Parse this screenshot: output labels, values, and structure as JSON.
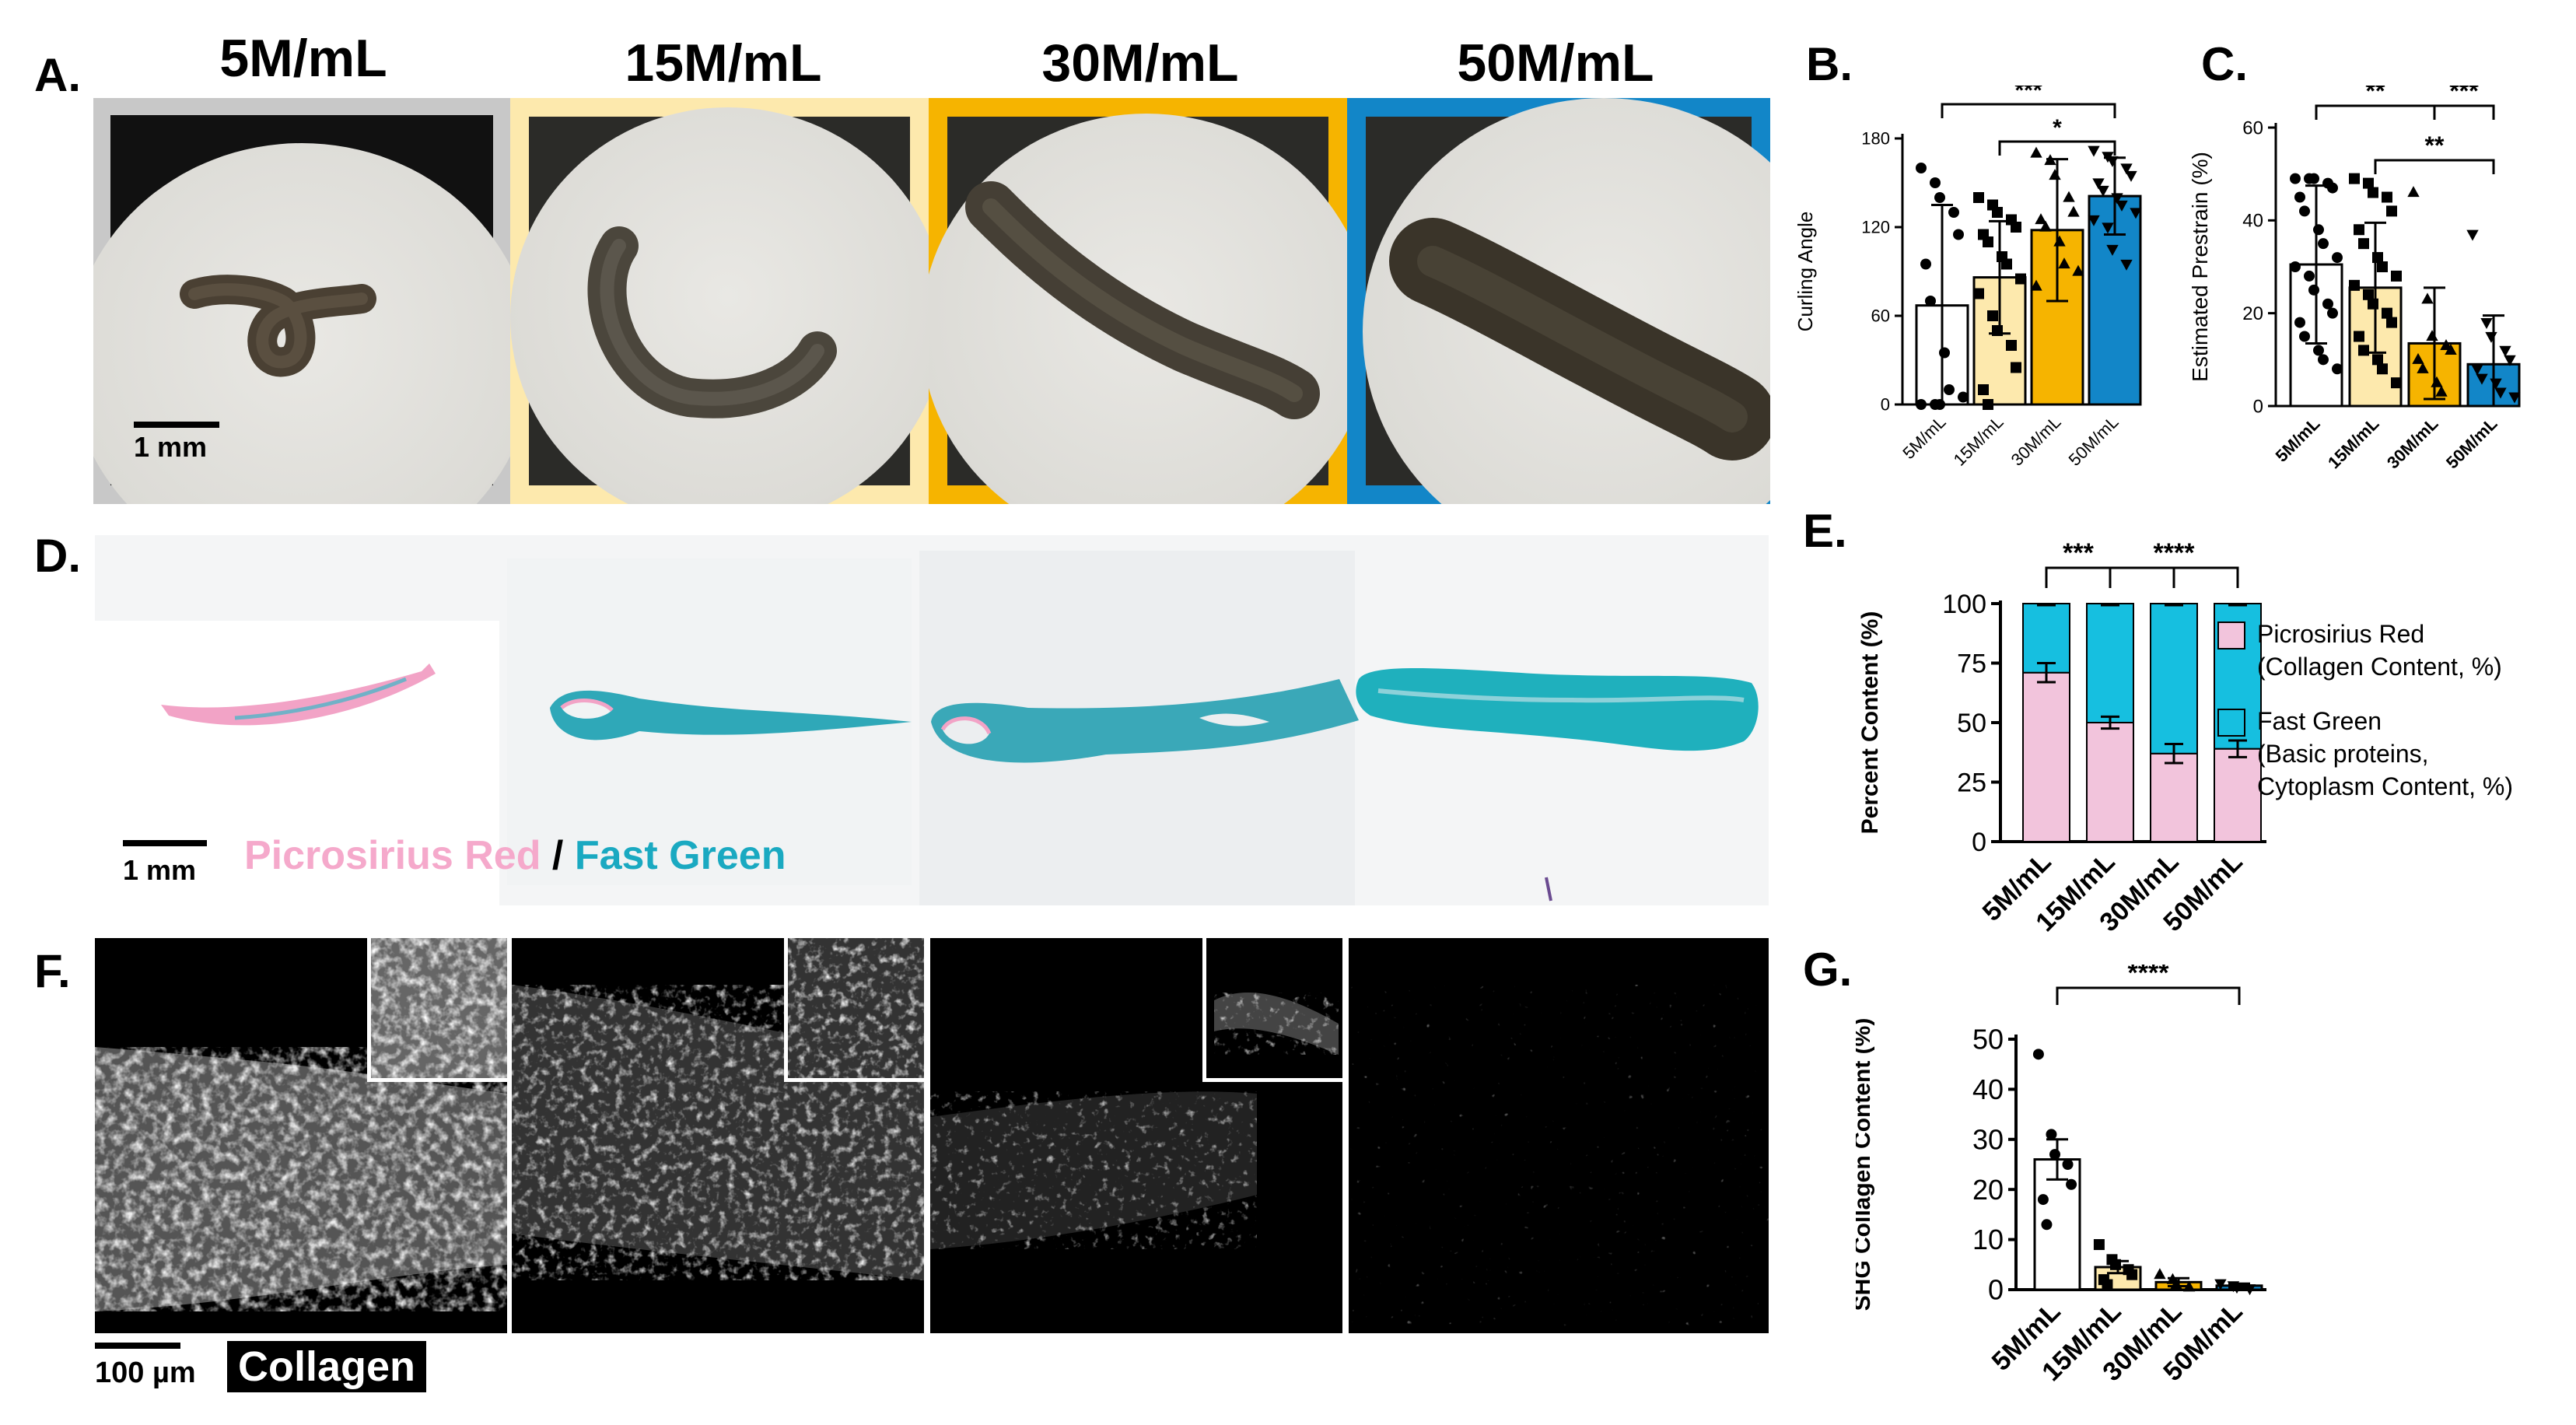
{
  "panels": {
    "A": "A.",
    "B": "B.",
    "C": "C.",
    "D": "D.",
    "E": "E.",
    "F": "F.",
    "G": "G."
  },
  "colors": {
    "c5": "#ffffff",
    "c15": "#fde9ad",
    "c30": "#f6b400",
    "c50": "#1286c8",
    "frame5": "#c8c8c8",
    "frame15": "#fde9ad",
    "frame30": "#f6b400",
    "frame50": "#1286c8",
    "picrosirius": "#f2c4dc",
    "fastgreen": "#16bfe0"
  },
  "photo_titles": [
    "5M/mL",
    "15M/mL",
    "30M/mL",
    "50M/mL"
  ],
  "scale_A": "1 mm",
  "scale_D": "1 mm",
  "stain_legend": {
    "red": "Picrosirius Red",
    "sep": " / ",
    "green": "Fast Green"
  },
  "scale_F": "100 µm",
  "collagen_label": "Collagen",
  "chart_data": [
    {
      "panel": "B",
      "type": "bar",
      "categories": [
        "5M/mL",
        "15M/mL",
        "30M/mL",
        "50M/mL"
      ],
      "values": [
        67,
        86,
        118,
        141
      ],
      "errors": [
        68,
        38,
        48,
        26
      ],
      "ylabel": "Curling Angle",
      "ylim": [
        0,
        180
      ],
      "yticks": [
        "0",
        "60",
        "120",
        "180"
      ],
      "points": [
        [
          160,
          150,
          140,
          130,
          115,
          95,
          70,
          35,
          10,
          5,
          0,
          0,
          0
        ],
        [
          140,
          135,
          130,
          125,
          120,
          115,
          110,
          100,
          95,
          85,
          75,
          60,
          50,
          40,
          25,
          10,
          0
        ],
        [
          170,
          165,
          155,
          140,
          130,
          125,
          120,
          110,
          95,
          90,
          80
        ],
        [
          172,
          168,
          165,
          160,
          155,
          150,
          145,
          140,
          135,
          130,
          125,
          120,
          105,
          95
        ]
      ],
      "markers": [
        "circle",
        "square",
        "triangle",
        "triangle-down"
      ],
      "significance": [
        {
          "from": 0,
          "to": 3,
          "label": "***"
        },
        {
          "from": 1,
          "to": 3,
          "label": "*"
        }
      ]
    },
    {
      "panel": "C",
      "type": "bar",
      "categories": [
        "5M/mL",
        "15M/mL",
        "30M/mL",
        "50M/mL"
      ],
      "values": [
        30.5,
        25.5,
        13.5,
        9.0
      ],
      "errors": [
        17,
        14,
        12,
        10.5
      ],
      "ylabel": "Estimated Prestrain (%)",
      "ylim": [
        0,
        60
      ],
      "yticks": [
        "0",
        "20",
        "40",
        "60"
      ],
      "points": [
        [
          49,
          49,
          49,
          48,
          47,
          45,
          42,
          38,
          35,
          32,
          30,
          28,
          25,
          22,
          20,
          18,
          15,
          12,
          10,
          8
        ],
        [
          49,
          48,
          46,
          45,
          42,
          38,
          35,
          32,
          30,
          28,
          26,
          24,
          22,
          20,
          18,
          15,
          12,
          10,
          8,
          5
        ],
        [
          46,
          23,
          15,
          13,
          12,
          10,
          8,
          5,
          3
        ],
        [
          37,
          18,
          15,
          12,
          10,
          8,
          6,
          5,
          3,
          2
        ]
      ],
      "markers": [
        "circle",
        "square",
        "triangle",
        "triangle-down"
      ],
      "significance": [
        {
          "from": 0,
          "to": 2,
          "label": "**"
        },
        {
          "from": 2,
          "to": 3,
          "label": "***"
        },
        {
          "from": 1,
          "to": 3,
          "label": "**"
        }
      ]
    },
    {
      "panel": "E",
      "type": "bar",
      "stacked": true,
      "categories": [
        "5M/mL",
        "15M/mL",
        "30M/mL",
        "50M/mL"
      ],
      "series": [
        {
          "name": "Picrosirius Red\n(Collagen Content, %)",
          "values": [
            71,
            50,
            37,
            39
          ],
          "errors": [
            4,
            2.5,
            4,
            3.5
          ]
        },
        {
          "name": "Fast Green\n(Basic proteins,\nCytoplasm Content, %)",
          "values": [
            29,
            50,
            63,
            61
          ]
        }
      ],
      "ylabel": "Percent Content (%)",
      "ylim": [
        0,
        100
      ],
      "yticks": [
        "0",
        "25",
        "50",
        "75",
        "100"
      ],
      "legend": "right",
      "significance": [
        {
          "from": 0,
          "to": 1,
          "label": "***"
        },
        {
          "from": 1,
          "to": 3,
          "label": "****"
        }
      ]
    },
    {
      "panel": "G",
      "type": "bar",
      "categories": [
        "5M/mL",
        "15M/mL",
        "30M/mL",
        "50M/mL"
      ],
      "values": [
        26,
        4.5,
        1.5,
        0.8
      ],
      "errors": [
        4,
        1.2,
        0.8,
        0.4
      ],
      "ylabel": "SHG Collagen Content (%)",
      "ylim": [
        0,
        50
      ],
      "yticks": [
        "0",
        "10",
        "20",
        "30",
        "40",
        "50"
      ],
      "points": [
        [
          47,
          31,
          27,
          25,
          21,
          18,
          13
        ],
        [
          9,
          6,
          5,
          4,
          3,
          2,
          1
        ],
        [
          3,
          2,
          1,
          0.5
        ],
        [
          1.2,
          0.8,
          0.5,
          0.2
        ]
      ],
      "markers": [
        "circle",
        "square",
        "triangle",
        "triangle-down"
      ],
      "significance": [
        {
          "from": 0,
          "to": 3,
          "label": "****"
        }
      ]
    }
  ]
}
